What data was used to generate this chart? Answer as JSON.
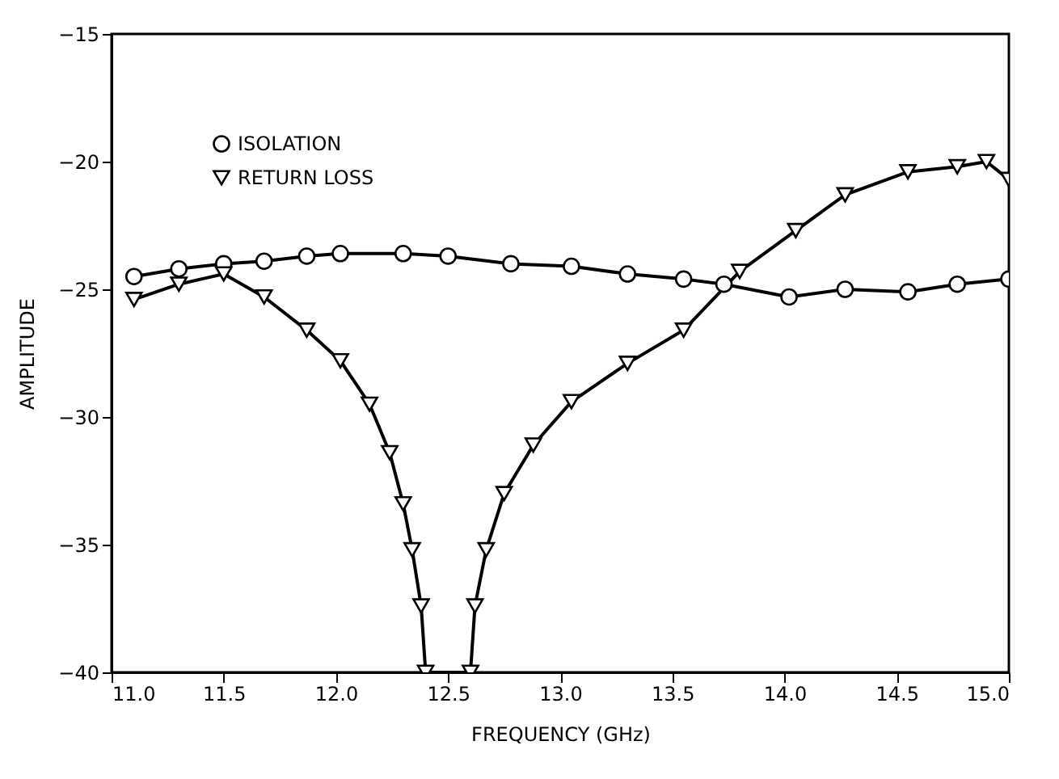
{
  "chart_data": {
    "type": "line",
    "xlabel": "FREQUENCY (GHz)",
    "ylabel": "AMPLITUDE",
    "xlim": [
      11.0,
      15.0
    ],
    "xticks": [
      {
        "value": 11,
        "label": "11.0"
      },
      {
        "value": 11.5,
        "label": "11.5"
      },
      {
        "value": 12,
        "label": "12.0"
      },
      {
        "value": 12.5,
        "label": "12.5"
      },
      {
        "value": 13,
        "label": "13.0"
      },
      {
        "value": 13.5,
        "label": "13.5"
      },
      {
        "value": 14,
        "label": "14.0"
      },
      {
        "value": 14.5,
        "label": "14.5"
      },
      {
        "value": 15,
        "label": "15.0"
      }
    ],
    "ylim": [
      -40,
      -15
    ],
    "yticks": [
      -40,
      -35,
      -30,
      -25,
      -20,
      -15
    ],
    "grid": false,
    "legend": "top left",
    "line_style": "solid",
    "series": [
      {
        "name": "ISOLATION",
        "color": "#000000",
        "marker": "circle",
        "x": [
          11.1,
          11.3,
          11.5,
          11.68,
          11.87,
          12.02,
          12.3,
          12.5,
          12.78,
          13.05,
          13.3,
          13.55,
          13.73,
          14.02,
          14.27,
          14.55,
          14.77,
          15.0
        ],
        "values": [
          -24.5,
          -24.2,
          -24.0,
          -23.9,
          -23.7,
          -23.6,
          -23.6,
          -23.7,
          -24.0,
          -24.1,
          -24.4,
          -24.6,
          -24.8,
          -25.3,
          -25.0,
          -25.1,
          -24.8,
          -24.6
        ]
      },
      {
        "name": "RETURN LOSS",
        "color": "#000000",
        "marker": "triangle",
        "x": [
          11.1,
          11.3,
          11.5,
          11.68,
          11.87,
          12.02,
          12.15,
          12.24,
          12.3,
          12.34,
          12.38,
          12.4,
          12.6,
          12.62,
          12.67,
          12.75,
          12.88,
          13.05,
          13.3,
          13.55,
          13.8,
          14.05,
          14.27,
          14.55,
          14.77,
          14.9,
          15.0
        ],
        "values": [
          -25.4,
          -24.8,
          -24.4,
          -25.3,
          -26.6,
          -27.8,
          -29.5,
          -31.4,
          -33.4,
          -35.2,
          -37.4,
          -40,
          -40,
          -37.4,
          -35.2,
          -33.0,
          -31.1,
          -29.4,
          -27.9,
          -26.6,
          -24.3,
          -22.7,
          -21.3,
          -20.4,
          -20.2,
          -20.0,
          -20.7
        ]
      }
    ]
  }
}
